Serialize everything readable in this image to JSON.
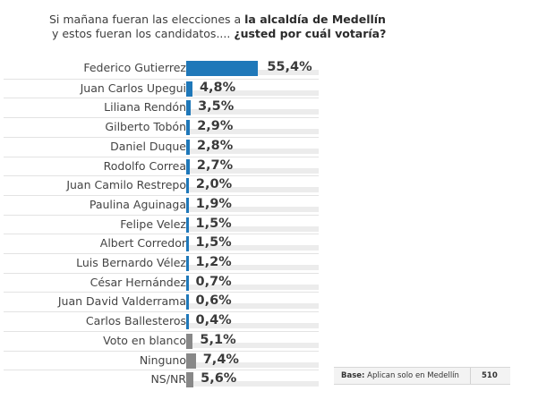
{
  "title": {
    "line1_normal": "Si mañana fueran las elecciones a ",
    "line1_bold": "la alcaldía de Medellín",
    "line2_normal": "y estos  fueran los candidatos.... ",
    "line2_bold": "¿usted por cuál votaría?"
  },
  "base": {
    "label_bold": "Base:",
    "label_text": " Aplican solo en Medellín",
    "n": "510"
  },
  "colors": {
    "candidate": "#1f78b9",
    "other": "#888888",
    "track": "#ececec"
  },
  "chart_data": {
    "type": "bar",
    "orientation": "horizontal",
    "title": "Si mañana fueran las elecciones a la alcaldía de Medellín y estos fueran los candidatos.... ¿usted por cuál votaría?",
    "xlabel": "",
    "ylabel": "",
    "unit": "%",
    "xlim": [
      0,
      100
    ],
    "grid": false,
    "legend": null,
    "categories": [
      "Federico Gutierrez",
      "Juan Carlos Upegui",
      "Liliana Rendón",
      "Gilberto Tobón",
      "Daniel Duque",
      "Rodolfo Correa",
      "Juan Camilo Restrepo",
      "Paulina Aguinaga",
      "Felipe Velez",
      "Albert Corredor",
      "Luis Bernardo Vélez",
      "César Hernández",
      "Juan David Valderrama",
      "Carlos Ballesteros",
      "Voto en blanco",
      "Ninguno",
      "NS/NR"
    ],
    "values": [
      55.4,
      4.8,
      3.5,
      2.9,
      2.8,
      2.7,
      2.0,
      1.9,
      1.5,
      1.5,
      1.2,
      0.7,
      0.6,
      0.4,
      5.1,
      7.4,
      5.6
    ],
    "labels": [
      "55,4%",
      "4,8%",
      "3,5%",
      "2,9%",
      "2,8%",
      "2,7%",
      "2,0%",
      "1,9%",
      "1,5%",
      "1,5%",
      "1,2%",
      "0,7%",
      "0,6%",
      "0,4%",
      "5,1%",
      "7,4%",
      "5,6%"
    ],
    "bar_kind": [
      "candidate",
      "candidate",
      "candidate",
      "candidate",
      "candidate",
      "candidate",
      "candidate",
      "candidate",
      "candidate",
      "candidate",
      "candidate",
      "candidate",
      "candidate",
      "candidate",
      "other",
      "other",
      "other"
    ],
    "annotation": "Base: Aplican solo en Medellín 510"
  }
}
